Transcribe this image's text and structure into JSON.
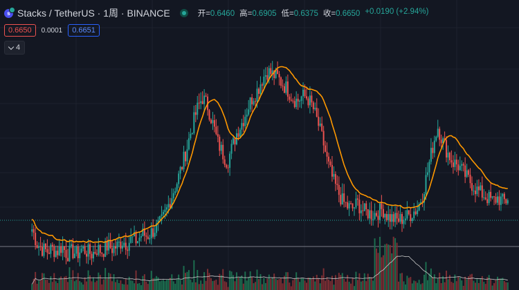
{
  "header": {
    "symbol_title": "Stacks / TetherUS · 1周 · BINANCE",
    "ohlc": [
      {
        "label": "开=",
        "value": "0.6460"
      },
      {
        "label": "高=",
        "value": "0.6905"
      },
      {
        "label": "低=",
        "value": "0.6375"
      },
      {
        "label": "收=",
        "value": "0.6650"
      }
    ],
    "change": "+0.0190 (+2.94%)"
  },
  "prices": {
    "sell": "0.6650",
    "spread": "0.0001",
    "buy": "0.6651"
  },
  "indicators": {
    "collapsed_count": "4"
  },
  "colors": {
    "up": "#26a69a",
    "down": "#ef5350",
    "ma": "#ff9800",
    "volume_ma": "#c8c8c8",
    "background": "#131722"
  },
  "chart_data": {
    "type": "candlestick",
    "interval": "1周",
    "series": [
      {
        "name": "price",
        "values": [
          0.52,
          0.46,
          0.44,
          0.43,
          0.44,
          0.43,
          0.45,
          0.42,
          0.43,
          0.42,
          0.44,
          0.43,
          0.42,
          0.44,
          0.43,
          0.45,
          0.44,
          0.45,
          0.47,
          0.46,
          0.48,
          0.47,
          0.5,
          0.49,
          0.51,
          0.53,
          0.56,
          0.62,
          0.7,
          0.78,
          0.9,
          1.05,
          1.25,
          1.45,
          1.6,
          1.5,
          1.3,
          1.1,
          1.0,
          0.92,
          1.05,
          1.2,
          1.3,
          1.45,
          1.6,
          1.7,
          1.88,
          2.0,
          1.95,
          1.9,
          1.8,
          1.72,
          1.6,
          1.55,
          1.62,
          1.6,
          1.48,
          1.3,
          1.12,
          0.92,
          0.8,
          0.72,
          0.66,
          0.63,
          0.62,
          0.65,
          0.61,
          0.6,
          0.59,
          0.6,
          0.62,
          0.58,
          0.57,
          0.56,
          0.57,
          0.58,
          0.6,
          0.62,
          0.7,
          0.85,
          1.05,
          1.25,
          1.1,
          1.0,
          0.92,
          0.9,
          0.85,
          0.8,
          0.76,
          0.72,
          0.7,
          0.68,
          0.66,
          0.68,
          0.66,
          0.665
        ]
      }
    ],
    "extra_series": [
      {
        "name": "moving_average",
        "color": "#ff9800"
      },
      {
        "name": "volume",
        "colors": [
          "#26a69a",
          "#ef5350"
        ]
      }
    ]
  }
}
